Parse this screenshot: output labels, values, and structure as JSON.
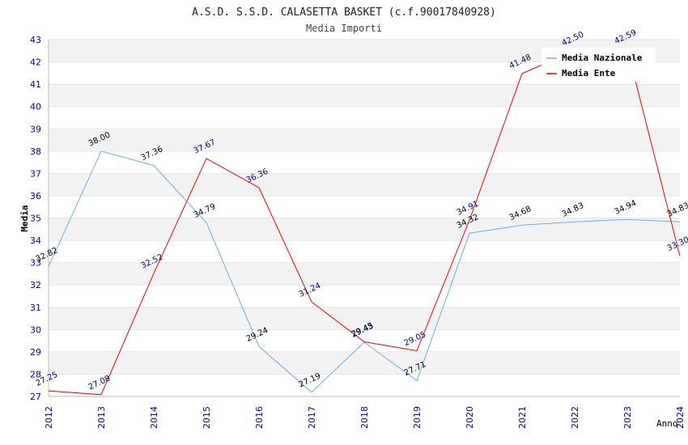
{
  "chart_data": {
    "type": "line",
    "title": "A.S.D. S.S.D. CALASETTA BASKET (c.f.90017840928)",
    "subtitle": "Media Importi",
    "xlabel": "Anno",
    "ylabel": "Media",
    "ylim": [
      27,
      43
    ],
    "yticks": [
      "27",
      "28",
      "29",
      "30",
      "31",
      "32",
      "33",
      "34",
      "35",
      "36",
      "37",
      "38",
      "39",
      "40",
      "41",
      "42",
      "43"
    ],
    "categories": [
      "2012",
      "2013",
      "2014",
      "2015",
      "2016",
      "2017",
      "2018",
      "2019",
      "2020",
      "2021",
      "2022",
      "2023",
      "2024"
    ],
    "series": [
      {
        "name": "Media Nazionale",
        "color": "#6aaee6",
        "label_color": "#000000",
        "values": [
          32.82,
          38.0,
          37.36,
          34.79,
          29.24,
          27.19,
          29.43,
          27.71,
          34.32,
          34.68,
          34.83,
          34.94,
          34.83
        ],
        "labels": [
          "32.82",
          "38.00",
          "37.36",
          "34.79",
          "29.24",
          "27.19",
          "29.43",
          "27.71",
          "34.32",
          "34.68",
          "34.83",
          "34.94",
          "34.83"
        ]
      },
      {
        "name": "Media Ente",
        "color": "#ee0000",
        "label_color": "#000080",
        "values": [
          27.25,
          27.08,
          32.52,
          37.67,
          36.36,
          31.24,
          29.45,
          29.05,
          34.91,
          41.48,
          42.5,
          42.59,
          33.3
        ],
        "labels": [
          "27.25",
          "27.08",
          "32.52",
          "37.67",
          "36.36",
          "31.24",
          "29.45",
          "29.05",
          "34.91",
          "41.48",
          "42.50",
          "42.59",
          "33.30"
        ]
      }
    ],
    "grid": true,
    "legend_position": "top-right"
  }
}
